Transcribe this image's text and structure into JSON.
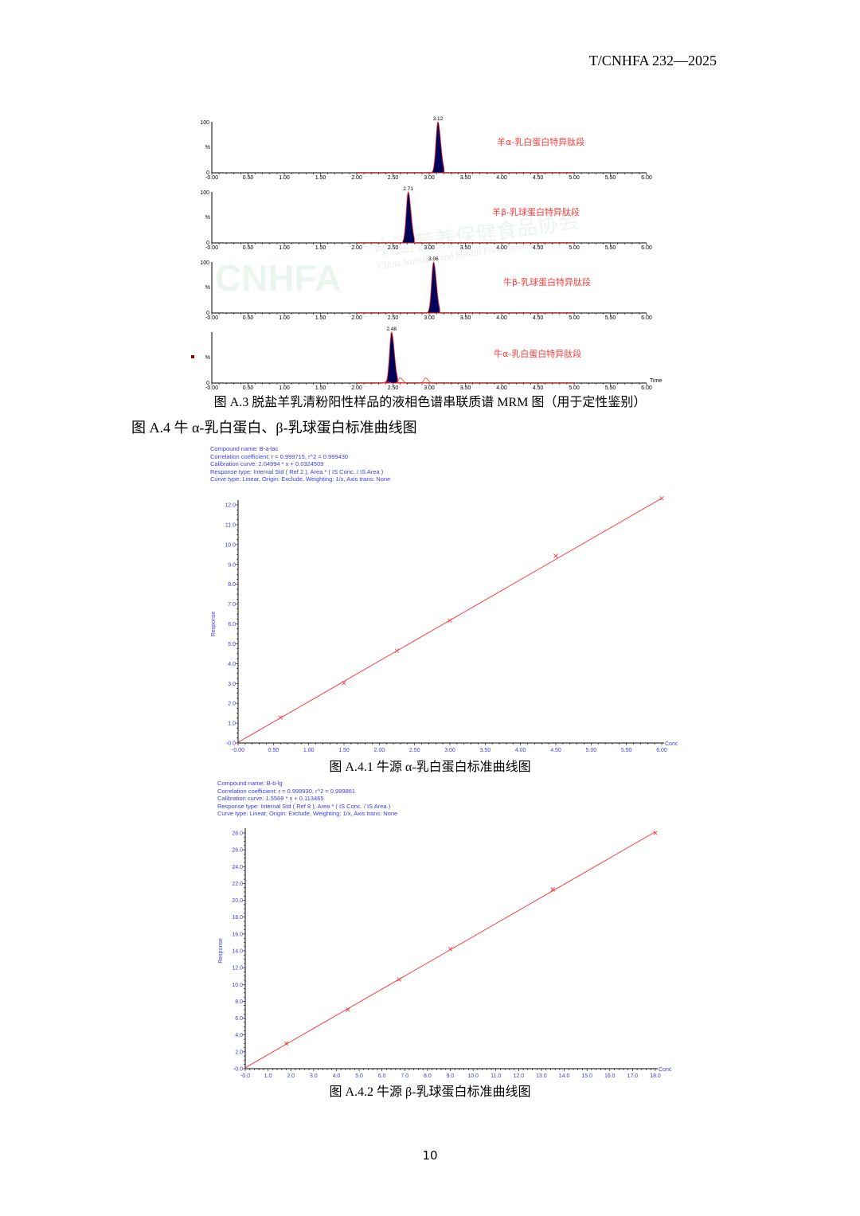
{
  "header": {
    "doc_code": "T/CNHFA 232—2025"
  },
  "watermark": {
    "logo": "CNHFA",
    "cn": "中国营养保健食品协会",
    "en": "China Nutrition and Health Food Association"
  },
  "figure_a3": {
    "caption": "图 A.3 脱盐羊乳清粉阳性样品的液相色谱串联质谱 MRM 图（用于定性鉴别）",
    "x_ticks": [
      "-0.00",
      "0.50",
      "1.00",
      "1.50",
      "2.00",
      "2.50",
      "3.00",
      "3.50",
      "4.00",
      "4.50",
      "5.00",
      "5.50",
      "6.00"
    ],
    "x_axis_label": "Time",
    "y_tick_top": "100",
    "y_tick_mid": "%",
    "y_tick_bottom": "0"
  },
  "heading_a4": "图 A.4 牛 α-乳白蛋白、β-乳球蛋白标准曲线图",
  "figure_a41": {
    "caption": "图 A.4.1 牛源 α-乳白蛋白标准曲线图",
    "info": [
      "Compound name: B-a-lac",
      "Correlation coefficient: r = 0.999715, r^2 = 0.999430",
      "Calibration curve: 2.04994 * x + 0.0324509",
      "Response type: Internal Std ( Ref 2 ), Area * ( IS Conc. / IS Area )",
      "Curve type: Linear, Origin: Exclude, Weighting: 1/x, Axis trans: None"
    ]
  },
  "figure_a42": {
    "caption": "图 A.4.2 牛源 β-乳球蛋白标准曲线图",
    "info": [
      "Compound name: B-b-lg",
      "Correlation coefficient: r = 0.999930, r^2 = 0.999861",
      "Calibration curve: 1.5569 * x + 0.113465",
      "Response type: Internal Std ( Ref 8 ), Area * ( IS Conc. / IS Area )",
      "Curve type: Linear, Origin: Exclude, Weighting: 1/x, Axis trans: None"
    ]
  },
  "page_number": "10",
  "chart_data": [
    {
      "type": "line",
      "subtype": "chromatogram",
      "trace_label": "羊α-乳白蛋白特异肽段",
      "peak_label": "3.12",
      "peaks": [
        {
          "rt": 3.12,
          "intensity": 100
        }
      ],
      "xlim": [
        0,
        6
      ],
      "ylim": [
        0,
        100
      ],
      "baseline_range": [
        2.0,
        5.0
      ],
      "peak_fill": "#00005a",
      "line_color": "#ff3030"
    },
    {
      "type": "line",
      "subtype": "chromatogram",
      "trace_label": "羊β-乳球蛋白特异肽段",
      "peak_label": "2.71",
      "peaks": [
        {
          "rt": 2.71,
          "intensity": 100
        }
      ],
      "xlim": [
        0,
        6
      ],
      "ylim": [
        0,
        100
      ],
      "baseline_range": [
        2.0,
        5.0
      ],
      "peak_fill": "#00005a",
      "line_color": "#ff3030"
    },
    {
      "type": "line",
      "subtype": "chromatogram",
      "trace_label": "牛β-乳球蛋白特异肽段",
      "peak_label": "3.06",
      "peaks": [
        {
          "rt": 3.06,
          "intensity": 100
        }
      ],
      "xlim": [
        0,
        6
      ],
      "ylim": [
        0,
        100
      ],
      "baseline_range": [
        2.0,
        5.0
      ],
      "peak_fill": "#00005a",
      "line_color": "#ff3030"
    },
    {
      "type": "line",
      "subtype": "chromatogram",
      "trace_label": "牛α-乳白蛋白特异肽段",
      "peak_label": "2.48",
      "peaks": [
        {
          "rt": 2.48,
          "intensity": 100
        },
        {
          "rt": 2.41,
          "intensity": 3,
          "minor": true
        },
        {
          "rt": 2.6,
          "intensity": 10,
          "minor": true
        },
        {
          "rt": 2.95,
          "intensity": 10,
          "minor": true
        }
      ],
      "xlim": [
        0,
        6
      ],
      "ylim": [
        0,
        100
      ],
      "baseline_range": [
        2.0,
        5.0
      ],
      "peak_fill": "#00005a",
      "line_color": "#ff3030"
    },
    {
      "type": "scatter",
      "title": "",
      "xlabel": "Conc",
      "ylabel": "Response",
      "x": [
        0.6,
        1.5,
        2.25,
        3.0,
        4.5,
        6.0
      ],
      "y": [
        1.28,
        3.02,
        4.65,
        6.17,
        9.43,
        12.33
      ],
      "fit": {
        "slope": 2.04994,
        "intercept": 0.0324509
      },
      "xlim": [
        0,
        6
      ],
      "ylim": [
        0,
        12
      ],
      "x_ticks": [
        "-0.00",
        "0.50",
        "1.00",
        "1.50",
        "2.00",
        "2.50",
        "3.00",
        "3.50",
        "4.00",
        "4.50",
        "5.00",
        "5.50",
        "6.00"
      ],
      "y_ticks": [
        "-0.0",
        "1.0",
        "2.0",
        "3.0",
        "4.0",
        "5.0",
        "6.0",
        "7.0",
        "8.0",
        "9.0",
        "10.0",
        "11.0",
        "12.0"
      ],
      "color": "#ff3030",
      "axis_text_color": "#3b3bf5"
    },
    {
      "type": "scatter",
      "title": "",
      "xlabel": "Conc",
      "ylabel": "Response",
      "x": [
        1.8,
        4.5,
        6.75,
        9.0,
        13.5,
        18.0
      ],
      "y": [
        3.0,
        7.0,
        10.6,
        14.2,
        21.3,
        28.0
      ],
      "fit": {
        "slope": 1.5569,
        "intercept": 0.113465
      },
      "xlim": [
        0,
        18
      ],
      "ylim": [
        0,
        28
      ],
      "x_ticks": [
        "-0.0",
        "1.0",
        "2.0",
        "3.0",
        "4.0",
        "5.0",
        "6.0",
        "7.0",
        "8.0",
        "9.0",
        "10.0",
        "11.0",
        "12.0",
        "13.0",
        "14.0",
        "15.0",
        "16.0",
        "17.0",
        "18.0"
      ],
      "y_ticks": [
        "-0.0",
        "2.0",
        "4.0",
        "6.0",
        "8.0",
        "10.0",
        "12.0",
        "14.0",
        "16.0",
        "18.0",
        "20.0",
        "22.0",
        "24.0",
        "26.0",
        "28.0"
      ],
      "color": "#ff3030",
      "axis_text_color": "#3b3bf5"
    }
  ]
}
